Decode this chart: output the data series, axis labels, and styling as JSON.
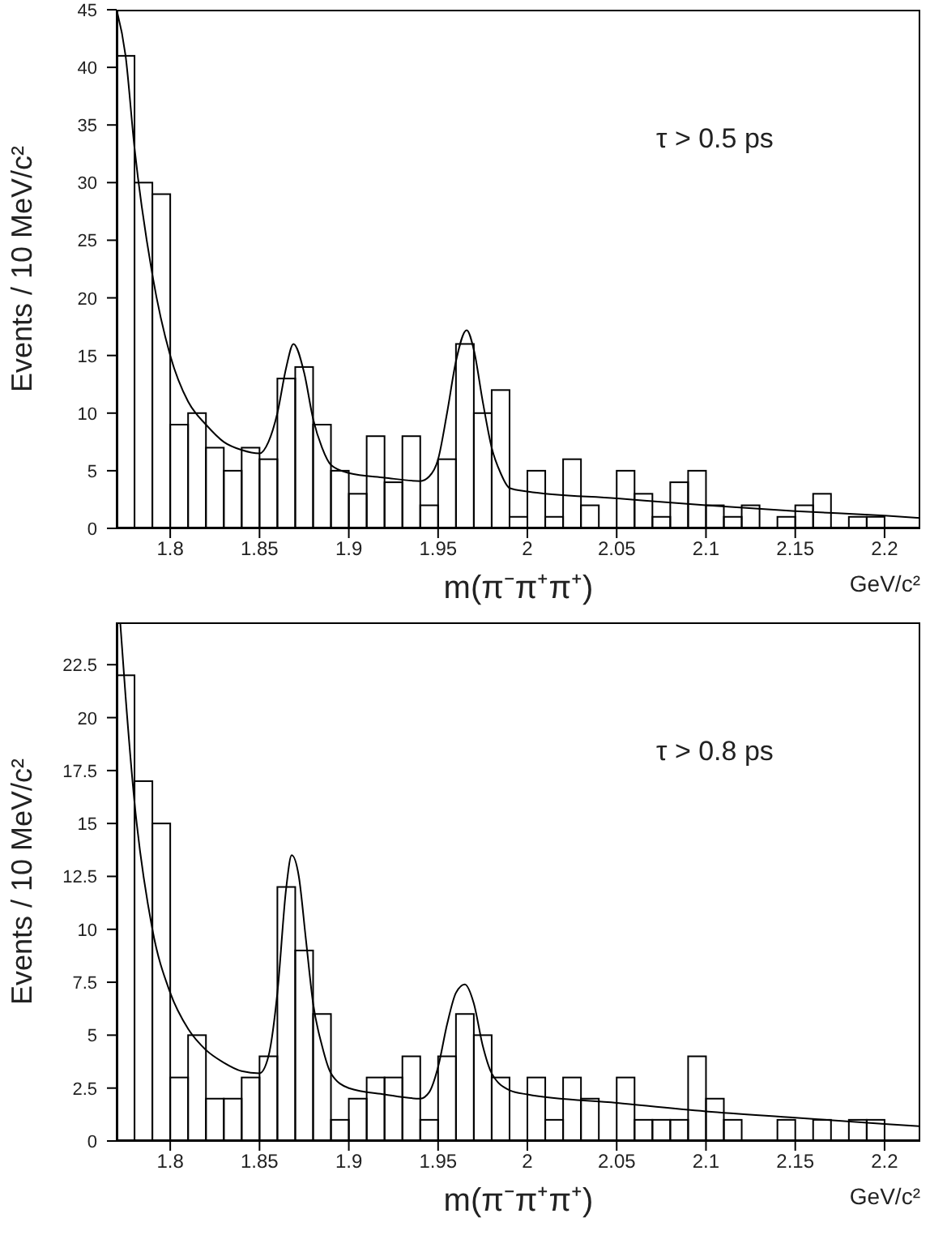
{
  "chart_data": [
    {
      "type": "histogram",
      "xlabel": "m(π⁻π⁺π⁺)",
      "ylabel": "Events / 10 MeV/c²",
      "annotations": [
        "τ > 0.5 ps",
        "GeV/c²"
      ],
      "bins": [
        1.77,
        1.78,
        1.79,
        1.8,
        1.81,
        1.82,
        1.83,
        1.84,
        1.85,
        1.86,
        1.87,
        1.88,
        1.89,
        1.9,
        1.91,
        1.92,
        1.93,
        1.94,
        1.95,
        1.96,
        1.97,
        1.98,
        1.99,
        2.0,
        2.01,
        2.02,
        2.03,
        2.04,
        2.05,
        2.06,
        2.07,
        2.08,
        2.09,
        2.1,
        2.11,
        2.12,
        2.13,
        2.14,
        2.15,
        2.16,
        2.17,
        2.18,
        2.19,
        2.2,
        2.21,
        2.22
      ],
      "series": [
        {
          "color": "#000000",
          "values": [
            41,
            30,
            29,
            9,
            10,
            7,
            5,
            7,
            6,
            13,
            14,
            9,
            5,
            3,
            8,
            4,
            8,
            2,
            6,
            16,
            10,
            12,
            1,
            5,
            1,
            6,
            2,
            0,
            5,
            3,
            1,
            4,
            5,
            2,
            1,
            2,
            0,
            1,
            2,
            3,
            0,
            1,
            1,
            0,
            0
          ]
        },
        {
          "type": "line",
          "color": "#000000",
          "x": [
            1.77,
            1.775,
            1.78,
            1.79,
            1.8,
            1.81,
            1.82,
            1.83,
            1.84,
            1.85,
            1.855,
            1.86,
            1.865,
            1.869,
            1.875,
            1.88,
            1.885,
            1.89,
            1.9,
            1.92,
            1.94,
            1.945,
            1.95,
            1.955,
            1.96,
            1.966,
            1.97,
            1.975,
            1.98,
            1.985,
            1.99,
            2.0,
            2.05,
            2.1,
            2.15,
            2.2,
            2.22
          ],
          "values": [
            45,
            41,
            33,
            22,
            15,
            11,
            9,
            7.5,
            6.8,
            6.5,
            7.5,
            10,
            14,
            16,
            13.5,
            9.5,
            7,
            5.5,
            4.8,
            4.4,
            4.1,
            4.5,
            6,
            10,
            14.5,
            17.2,
            15.5,
            11,
            7,
            4.8,
            3.5,
            3.2,
            2.6,
            2,
            1.5,
            1.1,
            0.9
          ]
        }
      ],
      "xlim": [
        1.77,
        2.22
      ],
      "xticks": [
        1.8,
        1.85,
        1.9,
        1.95,
        {
          "value": 2,
          "label": "2"
        },
        2.05,
        2.1,
        2.15,
        2.2
      ],
      "ylim": [
        0,
        45
      ],
      "yticks": [
        0,
        5,
        10,
        15,
        20,
        25,
        30,
        35,
        40,
        45
      ],
      "grid": false,
      "marker": "none",
      "line_style": "solid"
    },
    {
      "type": "histogram",
      "xlabel": "m(π⁻π⁺π⁺)",
      "ylabel": "Events / 10 MeV/c²",
      "annotations": [
        "τ > 0.8 ps",
        "GeV/c²"
      ],
      "bins": [
        1.77,
        1.78,
        1.79,
        1.8,
        1.81,
        1.82,
        1.83,
        1.84,
        1.85,
        1.86,
        1.87,
        1.88,
        1.89,
        1.9,
        1.91,
        1.92,
        1.93,
        1.94,
        1.95,
        1.96,
        1.97,
        1.98,
        1.99,
        2.0,
        2.01,
        2.02,
        2.03,
        2.04,
        2.05,
        2.06,
        2.07,
        2.08,
        2.09,
        2.1,
        2.11,
        2.12,
        2.13,
        2.14,
        2.15,
        2.16,
        2.17,
        2.18,
        2.19,
        2.2,
        2.21,
        2.22
      ],
      "series": [
        {
          "color": "#000000",
          "values": [
            22,
            17,
            15,
            3,
            5,
            2,
            2,
            3,
            4,
            12,
            9,
            6,
            1,
            2,
            3,
            3,
            4,
            1,
            4,
            6,
            5,
            3,
            0,
            3,
            1,
            3,
            2,
            0,
            3,
            1,
            1,
            1,
            4,
            2,
            1,
            0,
            0,
            1,
            0,
            1,
            0,
            1,
            1,
            0,
            0
          ]
        },
        {
          "type": "line",
          "color": "#000000",
          "x": [
            1.772,
            1.775,
            1.78,
            1.79,
            1.8,
            1.81,
            1.82,
            1.83,
            1.84,
            1.85,
            1.855,
            1.86,
            1.865,
            1.868,
            1.872,
            1.876,
            1.88,
            1.885,
            1.89,
            1.9,
            1.92,
            1.94,
            1.945,
            1.95,
            1.955,
            1.96,
            1.965,
            1.97,
            1.975,
            1.98,
            1.99,
            2.0,
            2.05,
            2.1,
            2.15,
            2.2,
            2.22
          ],
          "values": [
            24.5,
            21,
            16,
            10,
            7,
            5.3,
            4.3,
            3.7,
            3.3,
            3.2,
            4,
            7,
            12,
            13.5,
            12.5,
            9.5,
            6.5,
            4.5,
            3.2,
            2.5,
            2.2,
            2,
            2.3,
            3.5,
            5.5,
            7,
            7.4,
            6.5,
            4.5,
            3.2,
            2.4,
            2.2,
            1.8,
            1.4,
            1.1,
            0.8,
            0.7
          ]
        }
      ],
      "xlim": [
        1.77,
        2.22
      ],
      "xticks": [
        1.8,
        1.85,
        1.9,
        1.95,
        {
          "value": 2,
          "label": "2"
        },
        2.05,
        2.1,
        2.15,
        2.2
      ],
      "ylim": [
        0,
        24.5
      ],
      "yticks": [
        0,
        2.5,
        5,
        7.5,
        10,
        12.5,
        15,
        17.5,
        20,
        22.5
      ],
      "grid": false,
      "marker": "none",
      "line_style": "solid"
    }
  ]
}
